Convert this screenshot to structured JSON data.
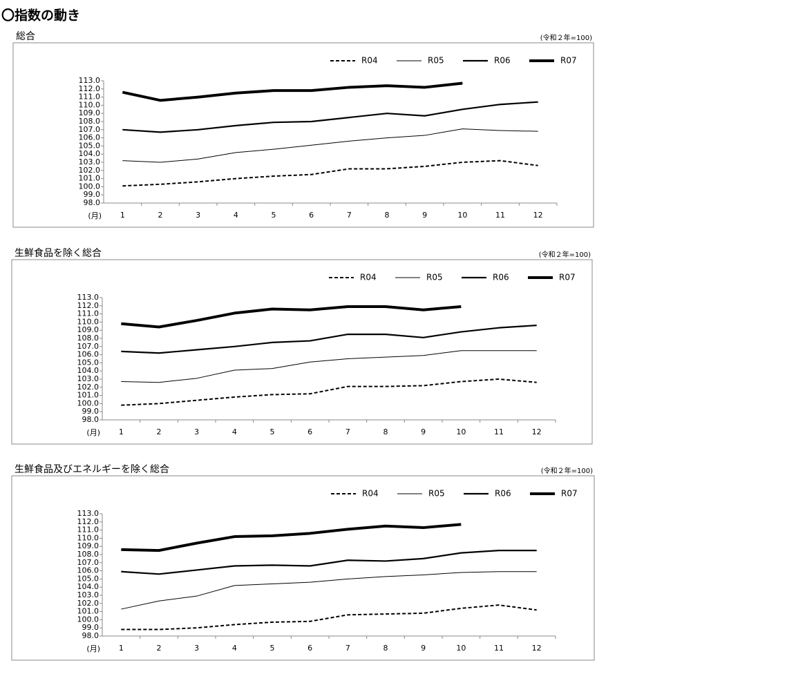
{
  "heading": "〇指数の動き",
  "chart_data": [
    {
      "type": "line",
      "title": "総合",
      "subtitle": "(令和２年=100)",
      "x_label": "(月)",
      "categories": [
        1,
        2,
        3,
        4,
        5,
        6,
        7,
        8,
        9,
        10,
        11,
        12
      ],
      "ylim": [
        98,
        113
      ],
      "yticks": [
        {
          "value": 98,
          "label": "98.0"
        },
        {
          "value": 99,
          "label": "99.0"
        },
        {
          "value": 100,
          "label": "100.0"
        },
        {
          "value": 101,
          "label": "101.0"
        },
        {
          "value": 102,
          "label": "102.0"
        },
        {
          "value": 103,
          "label": "103.0"
        },
        {
          "value": 104,
          "label": "104.0"
        },
        {
          "value": 105,
          "label": "105.0"
        },
        {
          "value": 106,
          "label": "106.0"
        },
        {
          "value": 107,
          "label": "107.0"
        },
        {
          "value": 108,
          "label": "108.0"
        },
        {
          "value": 109,
          "label": "109.0"
        },
        {
          "value": 110,
          "label": "110.0"
        },
        {
          "value": 111,
          "label": "111.0"
        },
        {
          "value": 112,
          "label": "112.0"
        },
        {
          "value": 113,
          "label": "113.0"
        }
      ],
      "grid": false,
      "legend": "top-right",
      "series": [
        {
          "name": "R04",
          "color": "#000000",
          "line_style": "dashed",
          "values": [
            100.1,
            100.3,
            100.6,
            101.0,
            101.3,
            101.5,
            102.2,
            102.2,
            102.5,
            103.0,
            103.2,
            102.6
          ]
        },
        {
          "name": "R05",
          "color": "#000000",
          "line_style": "thin",
          "values": [
            103.2,
            103.0,
            103.4,
            104.2,
            104.6,
            105.1,
            105.6,
            106.0,
            106.3,
            107.1,
            106.9,
            106.8
          ]
        },
        {
          "name": "R06",
          "color": "#000000",
          "line_style": "medium",
          "values": [
            107.0,
            106.7,
            107.0,
            107.5,
            107.9,
            108.0,
            108.5,
            109.0,
            108.7,
            109.5,
            110.1,
            110.4
          ]
        },
        {
          "name": "R07",
          "color": "#000000",
          "line_style": "thick",
          "values": [
            111.6,
            110.6,
            111.0,
            111.5,
            111.8,
            111.8,
            112.2,
            112.4,
            112.2,
            112.7,
            null,
            null
          ]
        }
      ]
    },
    {
      "type": "line",
      "title": "生鮮食品を除く総合",
      "subtitle": "(令和２年=100)",
      "x_label": "(月)",
      "categories": [
        1,
        2,
        3,
        4,
        5,
        6,
        7,
        8,
        9,
        10,
        11,
        12
      ],
      "ylim": [
        98,
        113
      ],
      "yticks": [
        {
          "value": 98,
          "label": "98.0"
        },
        {
          "value": 99,
          "label": "99.0"
        },
        {
          "value": 100,
          "label": "100.0"
        },
        {
          "value": 101,
          "label": "101.0"
        },
        {
          "value": 102,
          "label": "102.0"
        },
        {
          "value": 103,
          "label": "103.0"
        },
        {
          "value": 104,
          "label": "104.0"
        },
        {
          "value": 105,
          "label": "105.0"
        },
        {
          "value": 106,
          "label": "106.0"
        },
        {
          "value": 107,
          "label": "107.0"
        },
        {
          "value": 108,
          "label": "108.0"
        },
        {
          "value": 109,
          "label": "109.0"
        },
        {
          "value": 110,
          "label": "110.0"
        },
        {
          "value": 111,
          "label": "111.0"
        },
        {
          "value": 112,
          "label": "112.0"
        },
        {
          "value": 113,
          "label": "113.0"
        }
      ],
      "grid": false,
      "legend": "top-right",
      "series": [
        {
          "name": "R04",
          "color": "#000000",
          "line_style": "dashed",
          "values": [
            99.8,
            100.0,
            100.4,
            100.8,
            101.1,
            101.2,
            102.1,
            102.1,
            102.2,
            102.7,
            103.0,
            102.6
          ]
        },
        {
          "name": "R05",
          "color": "#000000",
          "line_style": "thin",
          "values": [
            102.7,
            102.6,
            103.1,
            104.1,
            104.3,
            105.1,
            105.5,
            105.7,
            105.9,
            106.5,
            106.5,
            106.5
          ]
        },
        {
          "name": "R06",
          "color": "#000000",
          "line_style": "medium",
          "values": [
            106.4,
            106.2,
            106.6,
            107.0,
            107.5,
            107.7,
            108.5,
            108.5,
            108.1,
            108.8,
            109.3,
            109.6
          ]
        },
        {
          "name": "R07",
          "color": "#000000",
          "line_style": "thick",
          "values": [
            109.8,
            109.4,
            110.2,
            111.1,
            111.6,
            111.5,
            111.9,
            111.9,
            111.5,
            111.9,
            null,
            null
          ]
        }
      ]
    },
    {
      "type": "line",
      "title": "生鮮食品及びエネルギーを除く総合",
      "subtitle": "(令和２年=100)",
      "x_label": "(月)",
      "categories": [
        1,
        2,
        3,
        4,
        5,
        6,
        7,
        8,
        9,
        10,
        11,
        12
      ],
      "ylim": [
        98,
        113
      ],
      "yticks": [
        {
          "value": 98,
          "label": "98.0"
        },
        {
          "value": 99,
          "label": "99.0"
        },
        {
          "value": 100,
          "label": "100.0"
        },
        {
          "value": 101,
          "label": "101.0"
        },
        {
          "value": 102,
          "label": "102.0"
        },
        {
          "value": 103,
          "label": "103.0"
        },
        {
          "value": 104,
          "label": "104.0"
        },
        {
          "value": 105,
          "label": "105.0"
        },
        {
          "value": 106,
          "label": "106.0"
        },
        {
          "value": 107,
          "label": "107.0"
        },
        {
          "value": 108,
          "label": "108.0"
        },
        {
          "value": 109,
          "label": "109.0"
        },
        {
          "value": 110,
          "label": "110.0"
        },
        {
          "value": 111,
          "label": "111.0"
        },
        {
          "value": 112,
          "label": "112.0"
        },
        {
          "value": 113,
          "label": "113.0"
        }
      ],
      "grid": false,
      "legend": "top-right",
      "series": [
        {
          "name": "R04",
          "color": "#000000",
          "line_style": "dashed",
          "values": [
            98.8,
            98.8,
            99.0,
            99.4,
            99.7,
            99.8,
            100.6,
            100.7,
            100.8,
            101.4,
            101.8,
            101.2
          ]
        },
        {
          "name": "R05",
          "color": "#000000",
          "line_style": "thin",
          "values": [
            101.3,
            102.3,
            102.9,
            104.2,
            104.4,
            104.6,
            105.0,
            105.3,
            105.5,
            105.8,
            105.9,
            105.9
          ]
        },
        {
          "name": "R06",
          "color": "#000000",
          "line_style": "medium",
          "values": [
            105.9,
            105.6,
            106.1,
            106.6,
            106.7,
            106.6,
            107.3,
            107.2,
            107.5,
            108.2,
            108.5,
            108.5
          ]
        },
        {
          "name": "R07",
          "color": "#000000",
          "line_style": "thick",
          "values": [
            108.6,
            108.5,
            109.4,
            110.2,
            110.3,
            110.6,
            111.1,
            111.5,
            111.3,
            111.7,
            null,
            null
          ]
        }
      ]
    }
  ]
}
